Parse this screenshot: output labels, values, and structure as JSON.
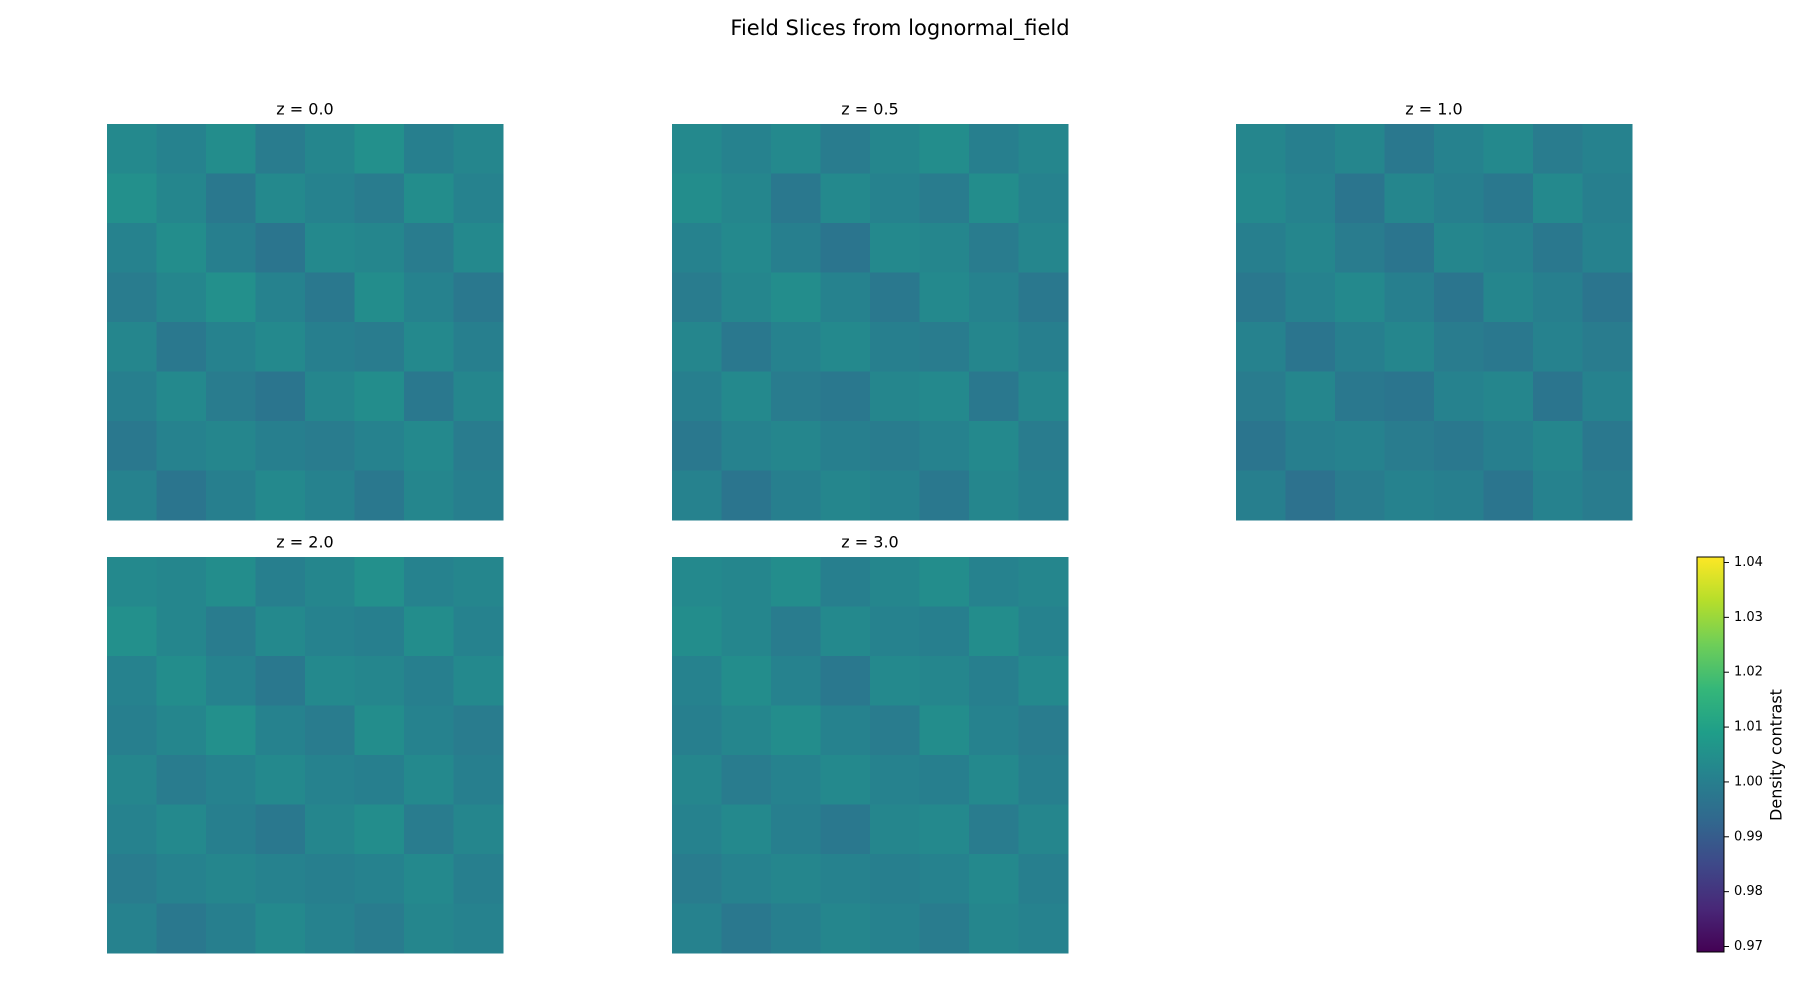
{
  "chart_data": {
    "type": "heatmap",
    "title": "Field Slices from lognormal_field",
    "colormap": "viridis",
    "clim": [
      0.969,
      1.041
    ],
    "colorbar": {
      "label": "Density contrast",
      "ticks": [
        0.97,
        0.98,
        0.99,
        {
          "value": 1,
          "label": "1.00"
        },
        1.01,
        1.02,
        1.03,
        1.04
      ]
    },
    "panels": [
      {
        "title": "z = 0.0",
        "values": [
          [
            1.003,
            1.001,
            1.004,
            0.999,
            1.002,
            1.005,
            1.0,
            1.002
          ],
          [
            1.005,
            1.002,
            0.998,
            1.003,
            1.001,
            0.999,
            1.004,
            1.001
          ],
          [
            1.001,
            1.004,
            1.0,
            0.997,
            1.003,
            1.002,
            0.999,
            1.003
          ],
          [
            0.999,
            1.002,
            1.005,
            1.001,
            0.998,
            1.004,
            1.001,
            0.998
          ],
          [
            1.002,
            0.998,
            1.001,
            1.003,
            1.0,
            0.999,
            1.003,
            1.0
          ],
          [
            1.0,
            1.003,
            0.999,
            0.997,
            1.002,
            1.004,
            0.998,
            1.002
          ],
          [
            0.998,
            1.001,
            1.002,
            1.0,
            0.999,
            1.001,
            1.003,
            0.999
          ],
          [
            1.001,
            0.997,
            1.0,
            1.003,
            1.001,
            0.998,
            1.002,
            1.0
          ]
        ]
      },
      {
        "title": "z = 0.5",
        "values": [
          [
            1.003,
            1.001,
            1.003,
            0.999,
            1.002,
            1.004,
            1.0,
            1.002
          ],
          [
            1.004,
            1.002,
            0.998,
            1.003,
            1.001,
            0.999,
            1.004,
            1.001
          ],
          [
            1.001,
            1.003,
            1.0,
            0.997,
            1.003,
            1.002,
            0.999,
            1.002
          ],
          [
            0.999,
            1.002,
            1.004,
            1.001,
            0.998,
            1.003,
            1.001,
            0.998
          ],
          [
            1.002,
            0.998,
            1.001,
            1.003,
            1.0,
            0.999,
            1.002,
            1.0
          ],
          [
            1.0,
            1.003,
            0.999,
            0.998,
            1.002,
            1.003,
            0.998,
            1.002
          ],
          [
            0.998,
            1.001,
            1.002,
            1.0,
            0.999,
            1.001,
            1.003,
            0.999
          ],
          [
            1.001,
            0.997,
            1.0,
            1.002,
            1.001,
            0.998,
            1.002,
            1.0
          ]
        ]
      },
      {
        "title": "z = 1.0",
        "values": [
          [
            1.002,
            1.0,
            1.002,
            0.998,
            1.001,
            1.003,
            0.999,
            1.001
          ],
          [
            1.003,
            1.001,
            0.997,
            1.002,
            1.0,
            0.998,
            1.003,
            1.0
          ],
          [
            1.0,
            1.002,
            0.999,
            0.997,
            1.002,
            1.001,
            0.998,
            1.001
          ],
          [
            0.998,
            1.001,
            1.003,
            1.0,
            0.997,
            1.002,
            1.0,
            0.997
          ],
          [
            1.001,
            0.997,
            1.0,
            1.002,
            0.999,
            0.998,
            1.001,
            0.999
          ],
          [
            0.999,
            1.002,
            0.998,
            0.997,
            1.001,
            1.002,
            0.997,
            1.001
          ],
          [
            0.997,
            1.0,
            1.001,
            0.999,
            0.998,
            1.0,
            1.002,
            0.998
          ],
          [
            1.0,
            0.996,
            0.999,
            1.001,
            1.0,
            0.997,
            1.001,
            0.999
          ]
        ]
      },
      {
        "title": "z = 2.0",
        "values": [
          [
            1.003,
            1.002,
            1.004,
            1.0,
            1.002,
            1.005,
            1.001,
            1.002
          ],
          [
            1.005,
            1.002,
            0.999,
            1.003,
            1.001,
            1.0,
            1.004,
            1.001
          ],
          [
            1.001,
            1.004,
            1.001,
            0.998,
            1.003,
            1.002,
            1.0,
            1.003
          ],
          [
            1.0,
            1.002,
            1.005,
            1.001,
            0.999,
            1.004,
            1.001,
            0.999
          ],
          [
            1.002,
            0.999,
            1.001,
            1.003,
            1.001,
            1.0,
            1.003,
            1.0
          ],
          [
            1.001,
            1.003,
            1.0,
            0.998,
            1.002,
            1.004,
            0.999,
            1.002
          ],
          [
            0.999,
            1.001,
            1.002,
            1.001,
            1.0,
            1.001,
            1.003,
            1.0
          ],
          [
            1.001,
            0.998,
            1.0,
            1.003,
            1.001,
            0.999,
            1.002,
            1.001
          ]
        ]
      },
      {
        "title": "z = 3.0",
        "values": [
          [
            1.003,
            1.002,
            1.004,
            1.0,
            1.002,
            1.004,
            1.001,
            1.002
          ],
          [
            1.004,
            1.002,
            0.999,
            1.003,
            1.001,
            1.0,
            1.004,
            1.001
          ],
          [
            1.001,
            1.004,
            1.001,
            0.998,
            1.003,
            1.002,
            1.0,
            1.003
          ],
          [
            1.0,
            1.002,
            1.004,
            1.001,
            0.999,
            1.004,
            1.001,
            0.999
          ],
          [
            1.002,
            0.999,
            1.001,
            1.003,
            1.001,
            1.0,
            1.003,
            1.0
          ],
          [
            1.001,
            1.003,
            1.0,
            0.998,
            1.002,
            1.003,
            0.999,
            1.002
          ],
          [
            0.999,
            1.001,
            1.002,
            1.001,
            1.0,
            1.001,
            1.003,
            1.0
          ],
          [
            1.001,
            0.998,
            1.0,
            1.002,
            1.001,
            0.999,
            1.002,
            1.001
          ]
        ]
      }
    ]
  }
}
